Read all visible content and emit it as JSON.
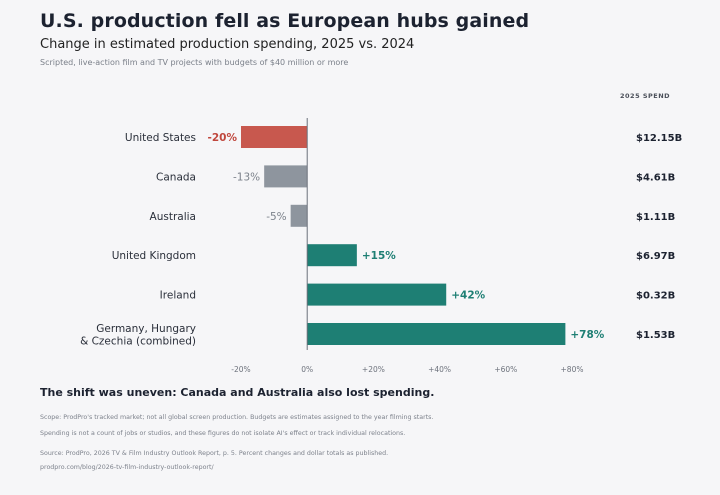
{
  "title": "U.S. production fell as European hubs gained",
  "subtitle": "Change in estimated production spending, 2025 vs. 2024",
  "note": "Scripted, live-action film and TV projects with budgets of $40 million or more",
  "spend_header": "2025 SPEND",
  "takeaway": "The shift was uneven: Canada and Australia also lost spending.",
  "footnotes": {
    "scope": "Scope: ProdPro's tracked market; not all global screen production. Budgets are estimates assigned to the year filming starts.",
    "caveat": "Spending is not a count of jobs or studios, and these figures do not isolate AI's effect or track individual relocations.",
    "source": "Source: ProdPro, 2026 TV & Film Industry Outlook Report, p. 5. Percent changes and dollar totals as published.",
    "url": "prodpro.com/blog/2026-tv-film-industry-outlook-report/"
  },
  "chart_data": {
    "type": "bar",
    "orientation": "horizontal",
    "categories": [
      "United States",
      "Canada",
      "Australia",
      "United Kingdom",
      "Ireland",
      "Germany, Hungary\n& Czechia (combined)"
    ],
    "values": [
      -20,
      -13,
      -5,
      15,
      42,
      78
    ],
    "value_labels": [
      "-20%",
      "-13%",
      "-5%",
      "+15%",
      "+42%",
      "+78%"
    ],
    "spend_2025": [
      "$12.15B",
      "$4.61B",
      "$1.11B",
      "$6.97B",
      "$0.32B",
      "$1.53B"
    ],
    "xlim": [
      -20,
      80
    ],
    "xticks": [
      -20,
      0,
      20,
      40,
      60,
      80
    ],
    "xtick_labels": [
      "-20%",
      "0%",
      "+20%",
      "+40%",
      "+60%",
      "+80%"
    ],
    "grid": false,
    "colors": {
      "us": "#c8584e",
      "other_decline": "#8e959e",
      "gain": "#1e7f74",
      "us_label": "#c0473d",
      "decline_label": "#7c828b",
      "gain_label": "#1e7f74",
      "axis": "#6b707a"
    }
  }
}
